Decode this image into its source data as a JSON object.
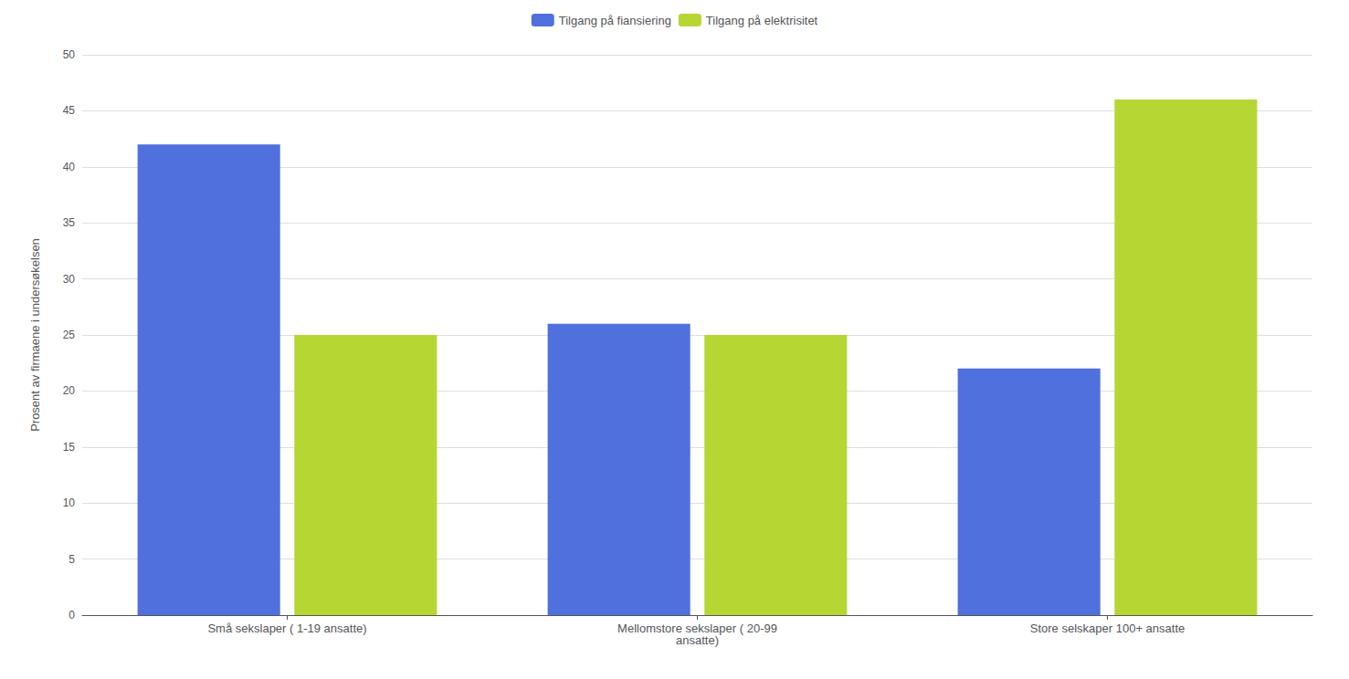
{
  "chart_data": {
    "type": "bar",
    "categories": [
      "Små sekslaper ( 1-19 ansatte)",
      "Mellomstore sekslaper ( 20-99\nansatte)",
      "Store selskaper 100+ ansatte"
    ],
    "series": [
      {
        "name": "Tilgang på fiansiering",
        "values": [
          42,
          26,
          22
        ]
      },
      {
        "name": "Tilgang på elektrisitet",
        "values": [
          25,
          25,
          46
        ]
      }
    ],
    "ylabel": "Prosent av firmaene i undersøkelsen",
    "ylim": [
      0,
      50
    ],
    "yticks": [
      0,
      5,
      10,
      15,
      20,
      25,
      30,
      35,
      40,
      45,
      50
    ],
    "grid": true,
    "legend": "top"
  }
}
